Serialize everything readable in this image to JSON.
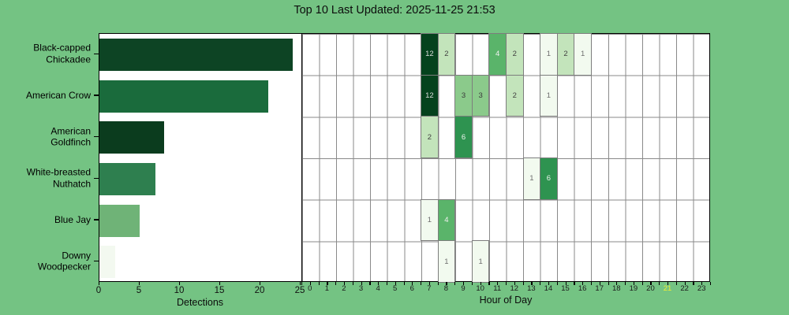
{
  "title": "Top 10 Last Updated: 2025-11-25 21:53",
  "colors": {
    "background": "#74c383",
    "plot_background": "#ffffff",
    "spine": "#000000",
    "grid": "#8a8a8a",
    "cell_border": "#7d7d7d",
    "tick_text": "#1a1a1a",
    "current_hour_text": "#f0ee33"
  },
  "chart_data": [
    {
      "type": "bar",
      "orientation": "horizontal",
      "xlabel": "Detections",
      "xlim": [
        0,
        25
      ],
      "x_ticks": [
        0,
        5,
        10,
        15,
        20,
        25
      ],
      "categories": [
        "Black-capped Chickadee",
        "American Crow",
        "American Goldfinch",
        "White-breasted Nuthatch",
        "Blue Jay",
        "Downy Woodpecker"
      ],
      "label_lines": [
        [
          "Black-capped",
          "Chickadee"
        ],
        [
          "American Crow"
        ],
        [
          "American",
          "Goldfinch"
        ],
        [
          "White-breasted",
          "Nuthatch"
        ],
        [
          "Blue Jay"
        ],
        [
          "Downy",
          "Woodpecker"
        ]
      ],
      "values": [
        24,
        21,
        8,
        7,
        5,
        2
      ],
      "bar_colors": [
        "#0d4424",
        "#1a6b3c",
        "#0b3c1e",
        "#2e7f4f",
        "#6fb377",
        "#f3f9f0"
      ],
      "grid": false
    },
    {
      "type": "heatmap",
      "xlabel": "Hour of Day",
      "x_labels": [
        "0",
        "1",
        "2",
        "3",
        "4",
        "5",
        "6",
        "7",
        "8",
        "9",
        "10",
        "11",
        "12",
        "13",
        "14",
        "15",
        "16",
        "17",
        "18",
        "19",
        "20",
        "21",
        "22",
        "23"
      ],
      "current_hour_label": "21",
      "rows": [
        "Black-capped Chickadee",
        "American Crow",
        "American Goldfinch",
        "White-breasted Nuthatch",
        "Blue Jay",
        "Downy Woodpecker"
      ],
      "values": [
        [
          0,
          0,
          0,
          0,
          0,
          0,
          0,
          12,
          2,
          0,
          0,
          4,
          2,
          0,
          1,
          2,
          1,
          0,
          0,
          0,
          0,
          0,
          0,
          0
        ],
        [
          0,
          0,
          0,
          0,
          0,
          0,
          0,
          12,
          0,
          3,
          3,
          0,
          2,
          0,
          1,
          0,
          0,
          0,
          0,
          0,
          0,
          0,
          0,
          0
        ],
        [
          0,
          0,
          0,
          0,
          0,
          0,
          0,
          2,
          0,
          6,
          0,
          0,
          0,
          0,
          0,
          0,
          0,
          0,
          0,
          0,
          0,
          0,
          0,
          0
        ],
        [
          0,
          0,
          0,
          0,
          0,
          0,
          0,
          0,
          0,
          0,
          0,
          0,
          0,
          1,
          6,
          0,
          0,
          0,
          0,
          0,
          0,
          0,
          0,
          0
        ],
        [
          0,
          0,
          0,
          0,
          0,
          0,
          0,
          1,
          4,
          0,
          0,
          0,
          0,
          0,
          0,
          0,
          0,
          0,
          0,
          0,
          0,
          0,
          0,
          0
        ],
        [
          0,
          0,
          0,
          0,
          0,
          0,
          0,
          0,
          1,
          0,
          1,
          0,
          0,
          0,
          0,
          0,
          0,
          0,
          0,
          0,
          0,
          0,
          0,
          0
        ]
      ],
      "cell_colors": {
        "1": [
          "#f2faef",
          "#6e6e6e"
        ],
        "2": [
          "#c3e4bb",
          "#404040"
        ],
        "3": [
          "#8bca8b",
          "#3a3a3a"
        ],
        "4": [
          "#5ab46a",
          "#f2f2f2"
        ],
        "6": [
          "#2e9350",
          "#eef5ee"
        ],
        "12": [
          "#05421d",
          "#dcdcdc"
        ]
      }
    }
  ]
}
